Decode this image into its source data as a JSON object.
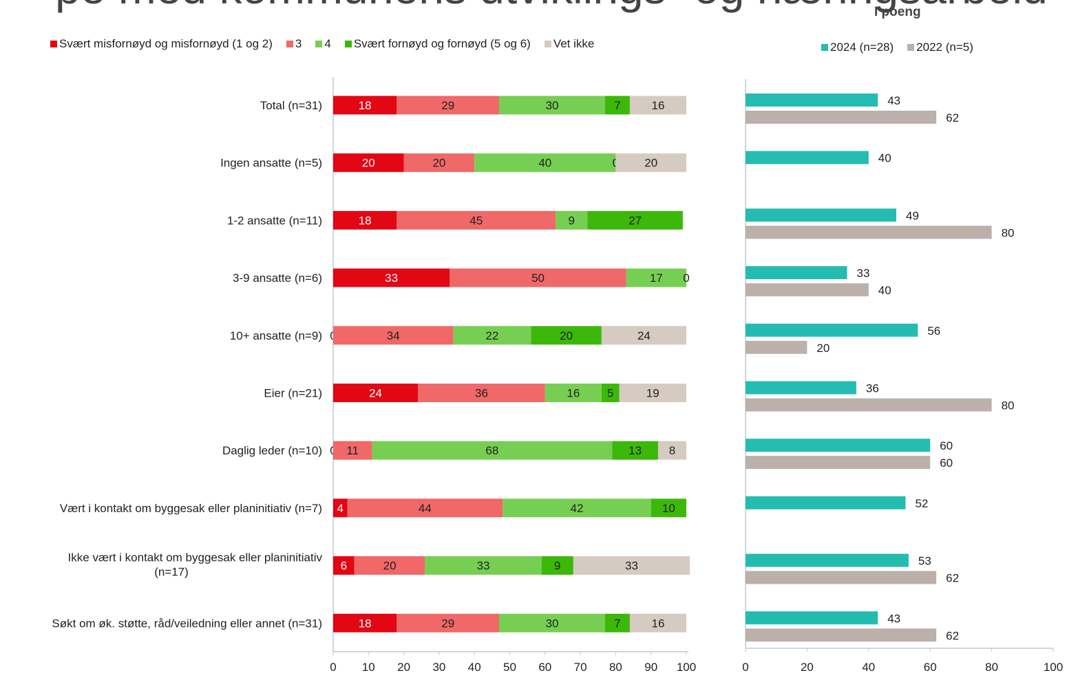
{
  "page": {
    "title": "pe med kommunens utviklings- og næringsarbeid",
    "right_title": "I poeng"
  },
  "chart_data": [
    {
      "type": "bar",
      "orientation": "horizontal",
      "stacked": true,
      "title": "",
      "xlabel": "",
      "ylabel": "",
      "xlim": [
        0,
        100
      ],
      "xticks": [
        "0",
        "10",
        "20",
        "30",
        "40",
        "50",
        "60",
        "70",
        "80",
        "90",
        "100"
      ],
      "grid": false,
      "legend_position": "top",
      "categories": [
        "Total (n=31)",
        "Ingen ansatte (n=5)",
        "1-2 ansatte (n=11)",
        "3-9 ansatte (n=6)",
        "10+ ansatte (n=9)",
        "Eier (n=21)",
        "Daglig leder (n=10)",
        "Vært i kontakt om byggesak eller planinitiativ (n=7)",
        "Ikke vært i kontakt om byggesak eller planinitiativ (n=17)",
        "Søkt om øk. støtte, råd/veiledning eller annet (n=31)"
      ],
      "series": [
        {
          "name": "Svært misfornøyd og misfornøyd (1 og 2)",
          "color": "#e30613",
          "label_color": "#ffffff",
          "values": [
            18,
            20,
            18,
            33,
            0,
            24,
            0,
            4,
            6,
            18
          ]
        },
        {
          "name": "3",
          "color": "#f06868",
          "label_color": "#222222",
          "values": [
            29,
            20,
            45,
            50,
            34,
            36,
            11,
            44,
            20,
            29
          ]
        },
        {
          "name": "4",
          "color": "#76cf52",
          "label_color": "#222222",
          "values": [
            30,
            40,
            9,
            17,
            22,
            16,
            68,
            42,
            33,
            30
          ]
        },
        {
          "name": "Svært fornøyd og fornøyd (5 og 6)",
          "color": "#3cb80a",
          "label_color": "#222222",
          "values": [
            7,
            0,
            27,
            0,
            20,
            5,
            13,
            10,
            9,
            7
          ]
        },
        {
          "name": "Vet ikke",
          "color": "#d5cbc1",
          "label_color": "#222222",
          "values": [
            16,
            20,
            0,
            0,
            24,
            19,
            8,
            0,
            33,
            16
          ]
        }
      ]
    },
    {
      "type": "bar",
      "orientation": "horizontal",
      "title": "I poeng",
      "xlim": [
        0,
        100
      ],
      "xticks": [
        "0",
        "20",
        "40",
        "60",
        "80",
        "100"
      ],
      "grid": false,
      "legend_position": "top",
      "categories": [
        "Total (n=31)",
        "Ingen ansatte (n=5)",
        "1-2 ansatte (n=11)",
        "3-9 ansatte (n=6)",
        "10+ ansatte (n=9)",
        "Eier (n=21)",
        "Daglig leder (n=10)",
        "Vært i kontakt om byggesak eller planinitiativ (n=7)",
        "Ikke vært i kontakt om byggesak eller planinitiativ (n=17)",
        "Søkt om øk. støtte, råd/veiledning eller annet (n=31)"
      ],
      "series": [
        {
          "name": "2024 (n=28)",
          "color": "#24bcb0",
          "values": [
            43,
            40,
            49,
            33,
            56,
            36,
            60,
            52,
            53,
            43
          ]
        },
        {
          "name": "2022 (n=5)",
          "color": "#bbb0aa",
          "values": [
            62,
            null,
            80,
            40,
            20,
            80,
            60,
            null,
            62,
            62
          ]
        }
      ]
    }
  ]
}
